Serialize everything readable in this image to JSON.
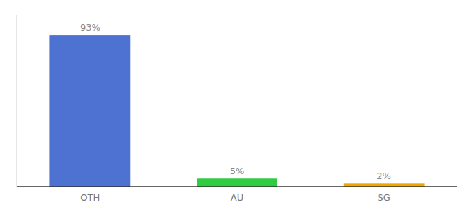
{
  "chart_data": {
    "type": "bar",
    "categories": [
      "OTH",
      "AU",
      "SG"
    ],
    "values": [
      93,
      5,
      2
    ],
    "value_labels": [
      "93%",
      "5%",
      "2%"
    ],
    "colors": [
      "#4d72d1",
      "#2ecc40",
      "#f0a800"
    ],
    "ylim": [
      0,
      105
    ],
    "data_labels": true,
    "tick_labels": "x",
    "grid": false
  }
}
